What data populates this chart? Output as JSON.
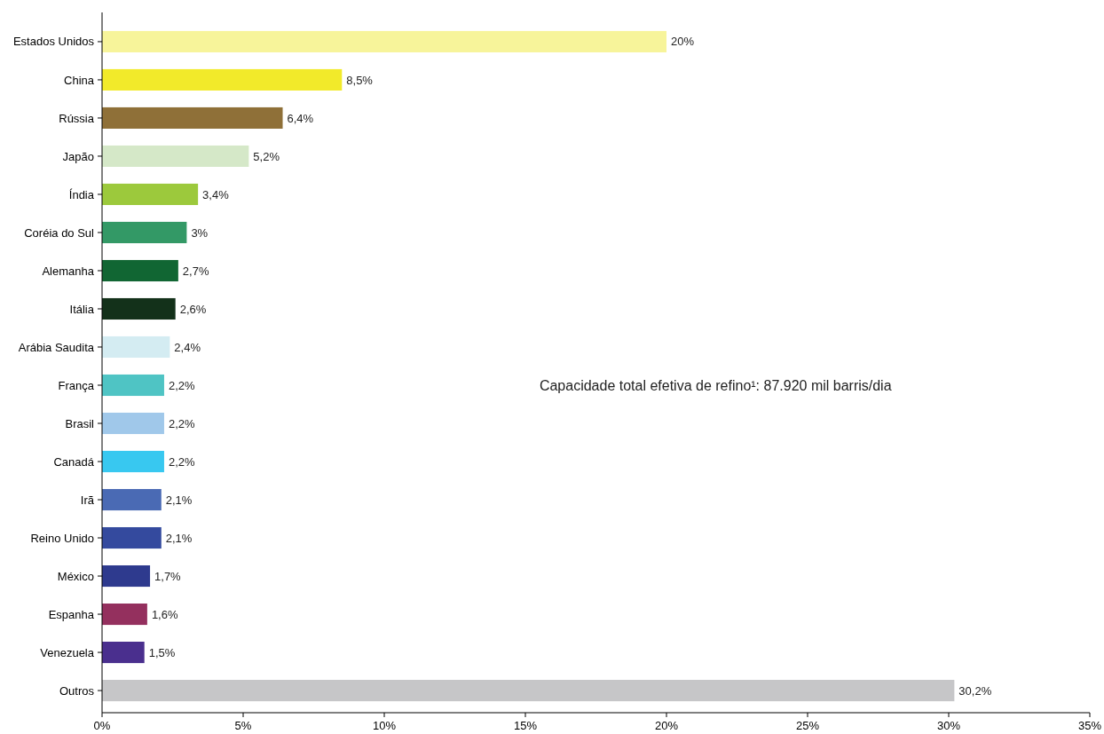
{
  "chart_data": {
    "type": "bar",
    "orientation": "horizontal",
    "categories": [
      "Estados Unidos",
      "China",
      "Rússia",
      "Japão",
      "Índia",
      "Coréia do Sul",
      "Alemanha",
      "Itália",
      "Arábia Saudita",
      "França",
      "Brasil",
      "Canadá",
      "Irã",
      "Reino Unido",
      "México",
      "Espanha",
      "Venezuela",
      "Outros"
    ],
    "values": [
      20,
      8.5,
      6.4,
      5.2,
      3.4,
      3,
      2.7,
      2.6,
      2.4,
      2.2,
      2.2,
      2.2,
      2.1,
      2.1,
      1.7,
      1.6,
      1.5,
      30.2
    ],
    "value_labels": [
      "20%",
      "8,5%",
      "6,4%",
      "5,2%",
      "3,4%",
      "3%",
      "2,7%",
      "2,6%",
      "2,4%",
      "2,2%",
      "2,2%",
      "2,2%",
      "2,1%",
      "2,1%",
      "1,7%",
      "1,6%",
      "1,5%",
      "30,2%"
    ],
    "colors": [
      "#f7f49a",
      "#f2ea2a",
      "#8f7038",
      "#d5e8c8",
      "#9cc93c",
      "#339966",
      "#116633",
      "#13311a",
      "#d4ecf2",
      "#4fc4c4",
      "#a0c8ea",
      "#38c8f0",
      "#4a6ab4",
      "#344a9e",
      "#2e3a8e",
      "#94305e",
      "#4a2f8e",
      "#c6c6c8"
    ],
    "xlim": [
      0,
      35
    ],
    "xticks": [
      {
        "value": 0,
        "label": "0%"
      },
      {
        "value": 5,
        "label": "5%"
      },
      {
        "value": 10,
        "label": "10%"
      },
      {
        "value": 15,
        "label": "15%"
      },
      {
        "value": 20,
        "label": "20%"
      },
      {
        "value": 25,
        "label": "25%"
      },
      {
        "value": 30,
        "label": "30%"
      },
      {
        "value": 35,
        "label": "35%"
      }
    ],
    "annotations": [
      "Capacidade total efetiva de refino¹: 87.920 mil barris/dia"
    ],
    "grid": false
  }
}
